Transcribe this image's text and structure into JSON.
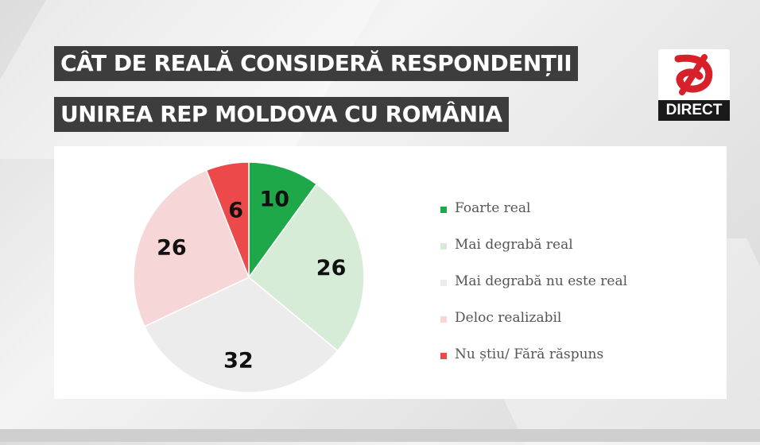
{
  "title": {
    "line1": "CÂT DE REALĂ CONSIDERĂ RESPONDENȚII",
    "line2": "UNIREA REP MOLDOVA CU ROMÂNIA"
  },
  "logo": {
    "label": "DIRECT",
    "color": "#d8202a"
  },
  "chart_data": {
    "type": "pie",
    "start_angle_deg": 0,
    "direction": "clockwise",
    "legend_position": "right",
    "slices": [
      {
        "label": "Foarte real",
        "value": 10,
        "color": "#1fa84a"
      },
      {
        "label": "Mai degrabă real",
        "value": 26,
        "color": "#d6ecd6"
      },
      {
        "label": "Mai degrabă nu este real",
        "value": 32,
        "color": "#ececec"
      },
      {
        "label": "Deloc realizabil",
        "value": 26,
        "color": "#f6d6d6"
      },
      {
        "label": "Nu știu/ Fără răspuns",
        "value": 6,
        "color": "#ec4a4a"
      }
    ]
  }
}
